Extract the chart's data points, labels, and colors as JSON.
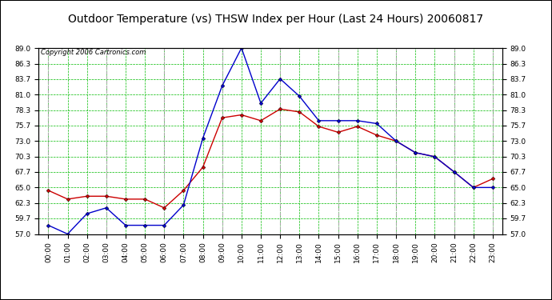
{
  "title": "Outdoor Temperature (vs) THSW Index per Hour (Last 24 Hours) 20060817",
  "copyright": "Copyright 2006 Cartronics.com",
  "hours": [
    "00:00",
    "01:00",
    "02:00",
    "03:00",
    "04:00",
    "05:00",
    "06:00",
    "07:00",
    "08:00",
    "09:00",
    "10:00",
    "11:00",
    "12:00",
    "13:00",
    "14:00",
    "15:00",
    "16:00",
    "17:00",
    "18:00",
    "19:00",
    "20:00",
    "21:00",
    "22:00",
    "23:00"
  ],
  "temp": [
    64.5,
    63.0,
    63.5,
    63.5,
    63.0,
    63.0,
    61.5,
    64.5,
    68.5,
    77.0,
    77.5,
    76.5,
    78.5,
    78.0,
    75.5,
    74.5,
    75.5,
    74.0,
    73.0,
    71.0,
    70.3,
    67.7,
    65.0,
    66.5
  ],
  "thsw": [
    58.5,
    57.0,
    60.5,
    61.5,
    58.5,
    58.5,
    58.5,
    62.0,
    73.5,
    82.5,
    89.0,
    79.5,
    83.7,
    80.7,
    76.5,
    76.5,
    76.5,
    76.0,
    73.0,
    71.0,
    70.3,
    67.7,
    65.0,
    65.0
  ],
  "ylim_min": 57.0,
  "ylim_max": 89.0,
  "yticks": [
    57.0,
    59.7,
    62.3,
    65.0,
    67.7,
    70.3,
    73.0,
    75.7,
    78.3,
    81.0,
    83.7,
    86.3,
    89.0
  ],
  "bg_color": "#ffffff",
  "plot_bg": "#ffffff",
  "grid_color_major": "#00bb00",
  "grid_color_minor": "#00bb00",
  "vgrid_color": "#aaaaaa",
  "temp_color": "#cc0000",
  "thsw_color": "#0000cc",
  "border_color": "#000000",
  "title_fontsize": 10,
  "tick_fontsize": 6.5,
  "copyright_fontsize": 6
}
